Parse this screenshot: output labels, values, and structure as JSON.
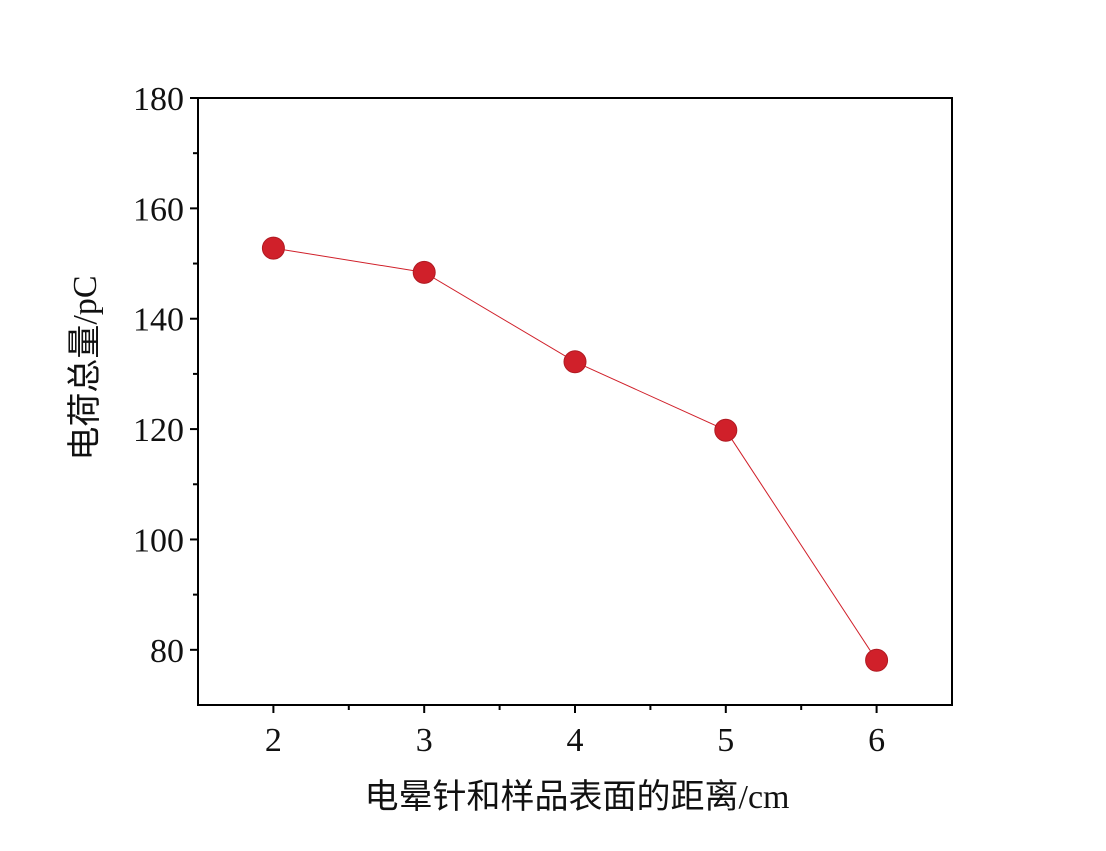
{
  "chart_data": {
    "type": "line",
    "title": "",
    "xlabel": "电晕针和样品表面的距离/cm",
    "ylabel": "电荷总量/pC",
    "x": [
      2,
      3,
      4,
      5,
      6
    ],
    "series": [
      {
        "values": [
          152.8,
          148.4,
          132.2,
          119.8,
          78.1
        ]
      }
    ],
    "xlim": [
      1.5,
      6.5
    ],
    "ylim": [
      70,
      180
    ],
    "xticks": [
      2,
      3,
      4,
      5,
      6
    ],
    "yticks": [
      80,
      100,
      120,
      140,
      160,
      180
    ],
    "grid": false,
    "legend": "none",
    "marker_color": "#d0202a",
    "line_color": "#d0202a",
    "axis_color": "#000000"
  }
}
